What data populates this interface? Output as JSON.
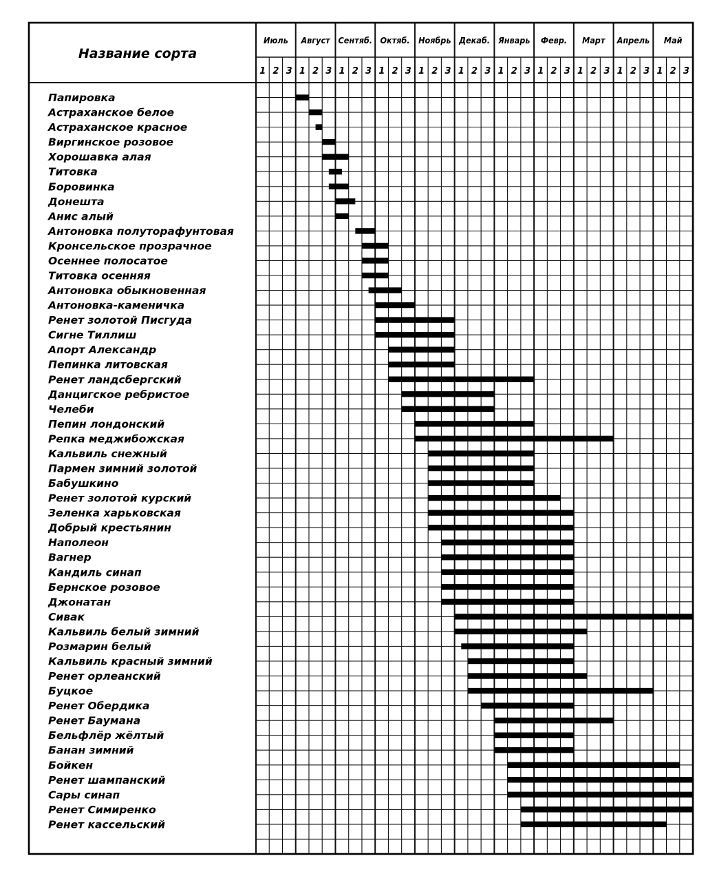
{
  "chart_data": {
    "type": "gantt",
    "header": {
      "name_column": "Название сорта",
      "months": [
        "Июль",
        "Август",
        "Сентяб.",
        "Октяб.",
        "Ноябрь",
        "Декаб.",
        "Январь",
        "Февр.",
        "Март",
        "Апрель",
        "Май"
      ],
      "decades": [
        "1",
        "2",
        "3"
      ]
    },
    "rows": [
      {
        "name": "Папировка",
        "start": 3,
        "end": 4
      },
      {
        "name": "Астраханское белое",
        "start": 4,
        "end": 5
      },
      {
        "name": "Астраханское красное",
        "start": 4.5,
        "end": 5
      },
      {
        "name": "Виргинское розовое",
        "start": 5,
        "end": 6
      },
      {
        "name": "Хорошавка алая",
        "start": 5,
        "end": 7
      },
      {
        "name": "Титовка",
        "start": 5.5,
        "end": 6.5
      },
      {
        "name": "Боровинка",
        "start": 5.5,
        "end": 7
      },
      {
        "name": "Донешта",
        "start": 6,
        "end": 7.5
      },
      {
        "name": "Анис алый",
        "start": 6,
        "end": 7
      },
      {
        "name": "Антоновка полуторафунтовая",
        "start": 7.5,
        "end": 9
      },
      {
        "name": "Кронсельское прозрачное",
        "start": 8,
        "end": 10
      },
      {
        "name": "Осеннее полосатое",
        "start": 8,
        "end": 10
      },
      {
        "name": "Титовка осенняя",
        "start": 8,
        "end": 10
      },
      {
        "name": "Антоновка обыкновенная",
        "start": 8.5,
        "end": 11
      },
      {
        "name": "Антоновка-каменичка",
        "start": 9,
        "end": 12
      },
      {
        "name": "Ренет золотой Писгуда",
        "start": 9,
        "end": 15
      },
      {
        "name": "Сигне Тиллиш",
        "start": 9,
        "end": 15
      },
      {
        "name": "Апорт Александр",
        "start": 10,
        "end": 15
      },
      {
        "name": "Пепинка литовская",
        "start": 10,
        "end": 15
      },
      {
        "name": "Ренет ландсбергский",
        "start": 10,
        "end": 21
      },
      {
        "name": "Данцигское ребристое",
        "start": 11,
        "end": 18
      },
      {
        "name": "Челеби",
        "start": 11,
        "end": 18
      },
      {
        "name": "Пепин лондонский",
        "start": 12,
        "end": 21
      },
      {
        "name": "Репка меджибожская",
        "start": 12,
        "end": 27
      },
      {
        "name": "Кальвиль снежный",
        "start": 13,
        "end": 21
      },
      {
        "name": "Пармен зимний золотой",
        "start": 13,
        "end": 21
      },
      {
        "name": "Бабушкино",
        "start": 13,
        "end": 21
      },
      {
        "name": "Ренет золотой курский",
        "start": 13,
        "end": 23
      },
      {
        "name": "Зеленка харьковская",
        "start": 13,
        "end": 24
      },
      {
        "name": "Добрый крестьянин",
        "start": 13,
        "end": 24
      },
      {
        "name": "Наполеон",
        "start": 14,
        "end": 24
      },
      {
        "name": "Вагнер",
        "start": 14,
        "end": 24
      },
      {
        "name": "Кандиль синап",
        "start": 14,
        "end": 24
      },
      {
        "name": "Бернское розовое",
        "start": 14,
        "end": 24
      },
      {
        "name": "Джонатан",
        "start": 14,
        "end": 24
      },
      {
        "name": "Сивак",
        "start": 15,
        "end": 33
      },
      {
        "name": "Кальвиль белый зимний",
        "start": 15,
        "end": 25
      },
      {
        "name": "Розмарин белый",
        "start": 15.5,
        "end": 24
      },
      {
        "name": "Кальвиль красный зимний",
        "start": 16,
        "end": 24
      },
      {
        "name": "Ренет орлеанский",
        "start": 16,
        "end": 25
      },
      {
        "name": "Буцкое",
        "start": 16,
        "end": 30
      },
      {
        "name": "Ренет Обердика",
        "start": 17,
        "end": 24
      },
      {
        "name": "Ренет Баумана",
        "start": 18,
        "end": 27
      },
      {
        "name": "Бельфлёр жёлтый",
        "start": 18,
        "end": 24
      },
      {
        "name": "Банан зимний",
        "start": 18,
        "end": 24
      },
      {
        "name": "Бойкен",
        "start": 19,
        "end": 32
      },
      {
        "name": "Ренет шампанский",
        "start": 19,
        "end": 33
      },
      {
        "name": "Сары синап",
        "start": 19,
        "end": 33
      },
      {
        "name": "Ренет Симиренко",
        "start": 20,
        "end": 33
      },
      {
        "name": "Ренет кассельский",
        "start": 20,
        "end": 31
      }
    ]
  }
}
